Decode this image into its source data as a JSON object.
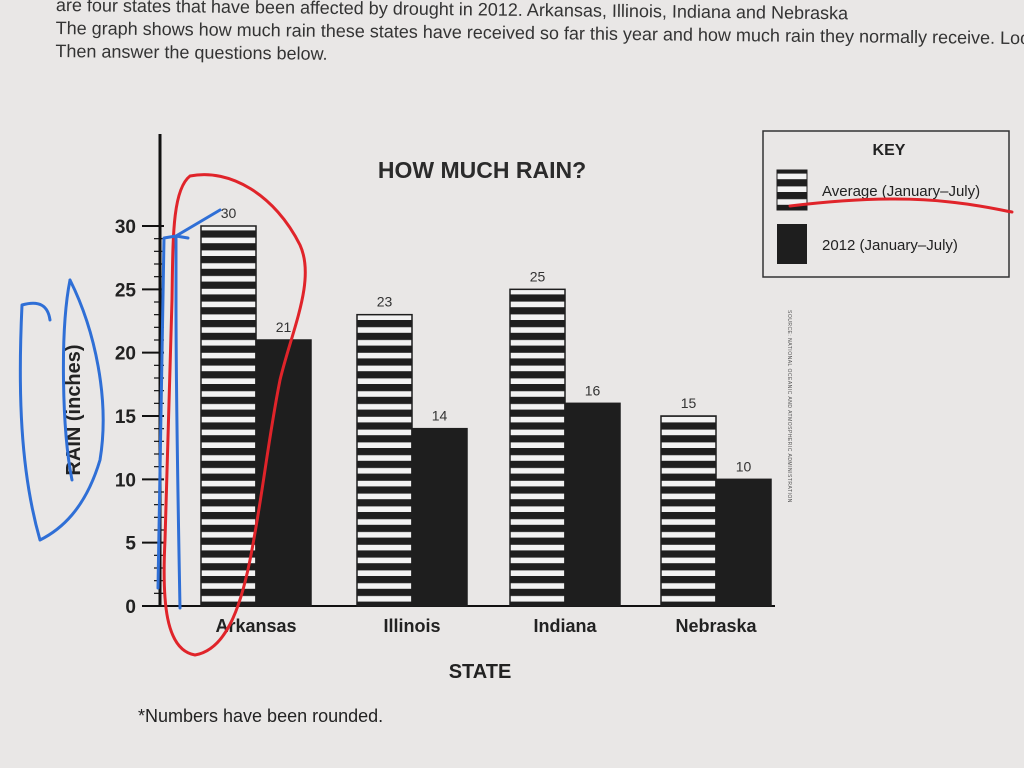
{
  "intro": {
    "line1": "are four states that have been affected by drought in 2012.",
    "line1b": "Arkansas, Illinois, Indiana and Nebraska",
    "line2": "states have received so far this year and how much rain they normally receive. Look at the graph.",
    "line2a": "The graph shows how much rain these",
    "line3": "Then answer the questions below."
  },
  "footnote": "*Numbers have been rounded.",
  "source_note": "SOURCE: NATIONAL OCEANIC AND ATMOSPHERIC ADMINISTRATION",
  "colors": {
    "bar_dark": "#1e1e1e",
    "stripe_light": "#f2f2f2",
    "annotation_red": "#e0242a",
    "annotation_blue": "#2f6fd6"
  },
  "chart_data": {
    "type": "bar",
    "title": "HOW MUCH RAIN?",
    "xlabel": "STATE",
    "ylabel": "RAIN (inches)",
    "categories": [
      "Arkansas",
      "Illinois",
      "Indiana",
      "Nebraska"
    ],
    "series": [
      {
        "name": "Average (January–July)",
        "values": [
          30,
          23,
          25,
          15
        ],
        "pattern": "horizontal-stripes"
      },
      {
        "name": "2012 (January–July)",
        "values": [
          21,
          14,
          16,
          10
        ],
        "pattern": "solid-black"
      }
    ],
    "ylim": [
      0,
      30
    ],
    "yticks": [
      0,
      5,
      10,
      15,
      20,
      25,
      30
    ],
    "key_title": "KEY",
    "legend_position": "top-right",
    "grid": false
  }
}
